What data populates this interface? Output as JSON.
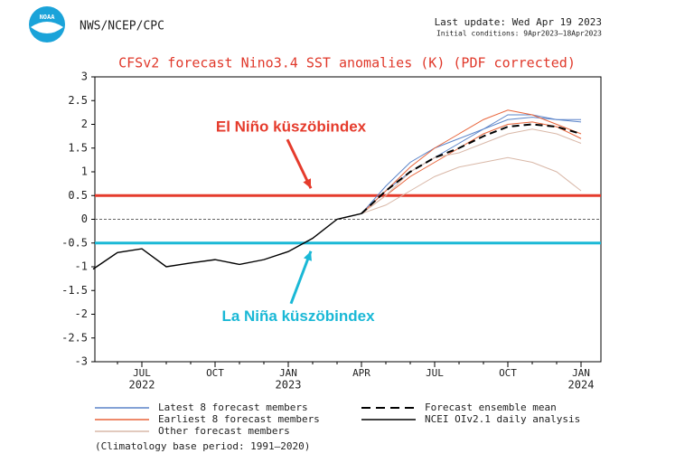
{
  "header": {
    "agency": "NWS/NCEP/CPC",
    "logo_text": "NOAA",
    "last_update": "Last update: Wed Apr 19 2023",
    "initial_conditions": "Initial conditions: 9Apr2023–18Apr2023"
  },
  "footnote": "(Climatology base period: 1991–2020)",
  "chart_data": {
    "type": "line",
    "title": "CFSv2 forecast Nino3.4 SST anomalies (K) (PDF corrected)",
    "categories": [
      null,
      null,
      "JUL",
      null,
      null,
      "OCT",
      null,
      null,
      "JAN",
      null,
      null,
      "APR",
      null,
      null,
      "JUL",
      null,
      null,
      "OCT",
      null,
      null,
      "JAN",
      null
    ],
    "category_years": [
      null,
      null,
      "2022",
      null,
      null,
      null,
      null,
      null,
      "2023",
      null,
      null,
      null,
      null,
      null,
      null,
      null,
      null,
      null,
      null,
      null,
      "2024",
      null
    ],
    "ylim": [
      -3,
      3
    ],
    "yticks": [
      3,
      2.5,
      2,
      1.5,
      1,
      0.5,
      0,
      -0.5,
      -1,
      -1.5,
      -2,
      -2.5,
      -3
    ],
    "grid": false,
    "zero_line": true,
    "reference_lines": [
      {
        "label": "El Niño küszöbindex",
        "value": 0.5,
        "color": "#e53b2c"
      },
      {
        "label": "La Niña küszöbindex",
        "value": -0.5,
        "color": "#1ab8d6"
      }
    ],
    "series": [
      {
        "name": "Latest 8 forecast members",
        "color": "#5b84c9",
        "members": [
          [
            null,
            null,
            null,
            null,
            null,
            null,
            null,
            null,
            null,
            null,
            null,
            0.12,
            0.7,
            1.2,
            1.5,
            1.7,
            1.9,
            2.1,
            2.15,
            2.1,
            2.1,
            null
          ],
          [
            null,
            null,
            null,
            null,
            null,
            null,
            null,
            null,
            null,
            null,
            null,
            0.12,
            0.6,
            1.0,
            1.3,
            1.6,
            1.9,
            2.2,
            2.2,
            2.1,
            2.05,
            null
          ]
        ]
      },
      {
        "name": "Earliest 8 forecast members",
        "color": "#e8643a",
        "members": [
          [
            null,
            null,
            null,
            null,
            null,
            null,
            null,
            null,
            null,
            null,
            null,
            0.12,
            0.5,
            0.9,
            1.2,
            1.5,
            1.8,
            2.0,
            2.05,
            1.95,
            1.7,
            null
          ],
          [
            null,
            null,
            null,
            null,
            null,
            null,
            null,
            null,
            null,
            null,
            null,
            0.12,
            0.6,
            1.1,
            1.5,
            1.8,
            2.1,
            2.3,
            2.2,
            2.0,
            1.8,
            null
          ]
        ]
      },
      {
        "name": "Other forecast members",
        "color": "#d9b8a8",
        "members": [
          [
            null,
            null,
            null,
            null,
            null,
            null,
            null,
            null,
            null,
            null,
            null,
            0.12,
            0.3,
            0.6,
            0.9,
            1.1,
            1.2,
            1.3,
            1.2,
            1.0,
            0.6,
            null
          ],
          [
            null,
            null,
            null,
            null,
            null,
            null,
            null,
            null,
            null,
            null,
            null,
            0.12,
            0.5,
            1.0,
            1.3,
            1.4,
            1.6,
            1.8,
            1.9,
            1.8,
            1.6,
            null
          ]
        ]
      },
      {
        "name": "Forecast ensemble mean",
        "color": "#000000",
        "dashed": true,
        "values": [
          null,
          null,
          null,
          null,
          null,
          null,
          null,
          null,
          null,
          null,
          null,
          0.12,
          0.6,
          1.0,
          1.3,
          1.5,
          1.75,
          1.95,
          2.0,
          1.95,
          1.8,
          null
        ]
      },
      {
        "name": "NCEI OIv2.1 daily analysis",
        "color": "#000000",
        "values": [
          -1.05,
          -0.7,
          -0.62,
          -1.0,
          -0.92,
          -0.85,
          -0.95,
          -0.85,
          -0.68,
          -0.4,
          0.0,
          0.12,
          null,
          null,
          null,
          null,
          null,
          null,
          null,
          null,
          null,
          null
        ]
      }
    ]
  }
}
